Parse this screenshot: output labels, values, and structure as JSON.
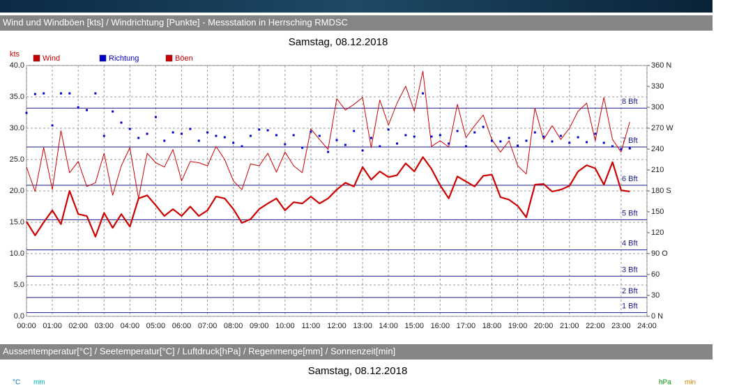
{
  "header": "Wind und Windböen [kts] / Windrichtung [Punkte] - Messstation in Herrsching RMDSC",
  "chart_data": {
    "type": "line",
    "title": "Samstag, 08.12.2018",
    "y_unit": "kts",
    "x": [
      0,
      20,
      40,
      60,
      80,
      100,
      120,
      140,
      160,
      180,
      200,
      220,
      240,
      260,
      280,
      300,
      320,
      340,
      360,
      380,
      400,
      420,
      440,
      460,
      480,
      500,
      520,
      540,
      560,
      580,
      600,
      620,
      640,
      660,
      680,
      700,
      720,
      740,
      760,
      780,
      800,
      820,
      840,
      860,
      880,
      900,
      920,
      940,
      960,
      980,
      1000,
      1020,
      1040,
      1060,
      1080,
      1100,
      1120,
      1140,
      1160,
      1180,
      1200,
      1220,
      1240,
      1260,
      1280,
      1300,
      1320,
      1340,
      1360,
      1380,
      1400
    ],
    "xlim": [
      0,
      1440
    ],
    "xticks": [
      {
        "value": 0,
        "label": "00:00"
      },
      {
        "value": 60,
        "label": "01:00"
      },
      {
        "value": 120,
        "label": "02:00"
      },
      {
        "value": 180,
        "label": "03:00"
      },
      {
        "value": 240,
        "label": "04:00"
      },
      {
        "value": 300,
        "label": "05:00"
      },
      {
        "value": 360,
        "label": "06:00"
      },
      {
        "value": 420,
        "label": "07:00"
      },
      {
        "value": 480,
        "label": "08:00"
      },
      {
        "value": 540,
        "label": "09:00"
      },
      {
        "value": 600,
        "label": "10:00"
      },
      {
        "value": 660,
        "label": "11:00"
      },
      {
        "value": 720,
        "label": "12:00"
      },
      {
        "value": 780,
        "label": "13:00"
      },
      {
        "value": 840,
        "label": "14:00"
      },
      {
        "value": 900,
        "label": "15:00"
      },
      {
        "value": 960,
        "label": "16:00"
      },
      {
        "value": 1020,
        "label": "17:00"
      },
      {
        "value": 1080,
        "label": "18:00"
      },
      {
        "value": 1140,
        "label": "19:00"
      },
      {
        "value": 1200,
        "label": "20:00"
      },
      {
        "value": 1260,
        "label": "21:00"
      },
      {
        "value": 1320,
        "label": "22:00"
      },
      {
        "value": 1380,
        "label": "23:00"
      },
      {
        "value": 1440,
        "label": "24:00"
      }
    ],
    "ylim": [
      0,
      40
    ],
    "yticks": [
      {
        "value": 0,
        "label": "0.0"
      },
      {
        "value": 5,
        "label": "5.0"
      },
      {
        "value": 10,
        "label": "10.0"
      },
      {
        "value": 15,
        "label": "15.0"
      },
      {
        "value": 20,
        "label": "20.0"
      },
      {
        "value": 25,
        "label": "25.0"
      },
      {
        "value": 30,
        "label": "30.0"
      },
      {
        "value": 35,
        "label": "35.0"
      },
      {
        "value": 40,
        "label": "40.0"
      }
    ],
    "y2lim": [
      0,
      360
    ],
    "y2ticks": [
      {
        "value": 0,
        "label": "0  N"
      },
      30,
      60,
      {
        "value": 90,
        "label": "90  O"
      },
      120,
      150,
      {
        "value": 180,
        "label": "180 S"
      },
      210,
      240,
      {
        "value": 270,
        "label": "270 W"
      },
      300,
      330,
      {
        "value": 360,
        "label": "360 N"
      }
    ],
    "grid": true,
    "beaufort": [
      {
        "value": 0.6,
        "label": "1 Bft"
      },
      {
        "value": 3.0,
        "label": "2 Bft"
      },
      {
        "value": 6.4,
        "label": "3 Bft"
      },
      {
        "value": 10.6,
        "label": "4 Bft"
      },
      {
        "value": 15.4,
        "label": "5 Bft"
      },
      {
        "value": 20.9,
        "label": "6 Bft"
      },
      {
        "value": 27.0,
        "label": "7 Bft"
      },
      {
        "value": 33.2,
        "label": "8 Bft"
      }
    ],
    "beaufort_color": "#1a1a8c",
    "series": [
      {
        "name": "Wind",
        "color": "#cc0000",
        "line_width": 2.2,
        "values": [
          15.1,
          12.9,
          15.0,
          16.9,
          14.7,
          20.0,
          16.3,
          16.0,
          12.7,
          16.5,
          14.1,
          16.3,
          14.3,
          18.8,
          19.3,
          17.7,
          16.0,
          17.1,
          16.0,
          17.5,
          16.0,
          16.9,
          19.1,
          18.8,
          17.1,
          14.9,
          15.5,
          17.1,
          18.0,
          18.8,
          16.9,
          18.2,
          18.0,
          19.1,
          18.0,
          18.8,
          20.2,
          21.3,
          20.7,
          23.8,
          21.8,
          23.1,
          22.2,
          22.5,
          24.4,
          23.1,
          25.4,
          23.5,
          20.9,
          18.8,
          22.3,
          21.5,
          20.7,
          22.4,
          22.6,
          19.0,
          18.6,
          17.6,
          15.8,
          21.0,
          21.1,
          19.9,
          20.2,
          20.8,
          23.1,
          24.1,
          23.6,
          21.0,
          24.6,
          20.1,
          19.9
        ]
      },
      {
        "name": "Richtung",
        "color": "#0000cc",
        "axis": "y2",
        "marker": "square",
        "values": [
          292,
          319,
          320,
          274,
          320,
          320,
          300,
          296,
          320,
          259,
          294,
          278,
          269,
          256,
          262,
          286,
          252,
          264,
          262,
          269,
          252,
          264,
          259,
          257,
          249,
          244,
          259,
          268,
          267,
          260,
          247,
          260,
          242,
          265,
          259,
          236,
          253,
          246,
          266,
          238,
          256,
          244,
          268,
          248,
          260,
          258,
          320,
          258,
          260,
          248,
          266,
          244,
          264,
          272,
          252,
          251,
          256,
          245,
          252,
          264,
          258,
          251,
          259,
          249,
          257,
          250,
          262,
          249,
          244,
          240,
          241
        ]
      },
      {
        "name": "Böen",
        "color": "#cc0000",
        "line_width": 1,
        "values": [
          23.8,
          19.9,
          26.9,
          20.2,
          29.6,
          22.9,
          24.7,
          20.7,
          21.3,
          26.0,
          19.3,
          24.0,
          26.9,
          18.8,
          26.0,
          24.5,
          23.8,
          26.6,
          21.6,
          24.7,
          24.5,
          24.0,
          27.1,
          25.0,
          21.6,
          20.2,
          24.3,
          24.0,
          26.0,
          23.0,
          26.2,
          24.0,
          22.9,
          29.9,
          28.2,
          26.6,
          34.7,
          32.9,
          33.8,
          34.9,
          26.9,
          34.5,
          30.5,
          34.0,
          36.7,
          32.7,
          39.1,
          27.1,
          28.0,
          27.0,
          33.8,
          28.5,
          30.4,
          32.1,
          28.2,
          26.2,
          28.0,
          24.0,
          22.7,
          33.2,
          28.2,
          30.4,
          28.2,
          30.0,
          32.7,
          34.0,
          28.0,
          34.9,
          28.2,
          26.2,
          31.0
        ]
      }
    ]
  },
  "lower_panel": {
    "header": "Aussentemperatur[°C] / Seetemperatur[°C] / Luftdruck[hPa] / Regenmenge[mm] / Sonnenzeit[min]",
    "title": "Samstag, 08.12.2018",
    "units_left": [
      "°C",
      "mm"
    ],
    "units_right": [
      "hPa",
      "min"
    ]
  }
}
